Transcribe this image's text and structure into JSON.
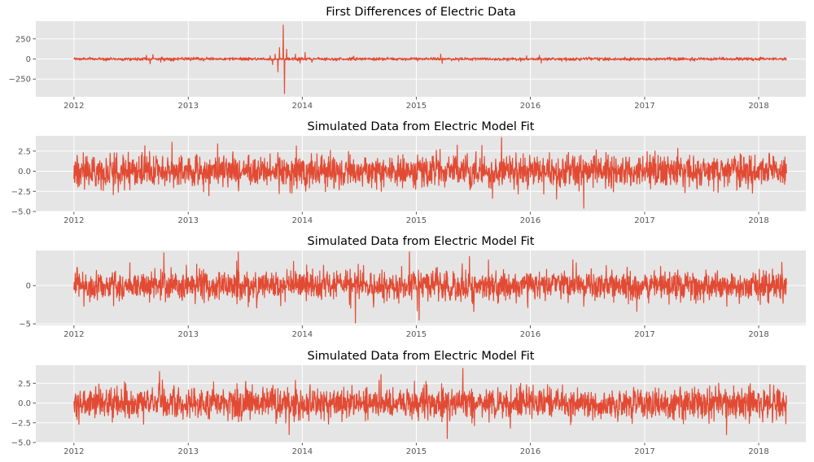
{
  "chart_data": [
    {
      "type": "line",
      "title": "First Differences of Electric Data",
      "xlabel": "",
      "ylabel": "",
      "x_range": [
        "2012-01-01",
        "2018-03-31"
      ],
      "xlim": [
        "2011-09-01",
        "2018-06-01"
      ],
      "ylim": [
        -470,
        470
      ],
      "x_ticks": [
        "2012",
        "2013",
        "2014",
        "2015",
        "2016",
        "2017",
        "2018"
      ],
      "y_ticks": [
        -250,
        0,
        250
      ],
      "noise_sd": 9,
      "spikes": [
        {
          "date": "2012-08-20",
          "value": 45
        },
        {
          "date": "2012-09-01",
          "value": -60
        },
        {
          "date": "2012-09-10",
          "value": 55
        },
        {
          "date": "2012-10-05",
          "value": -40
        },
        {
          "date": "2013-09-20",
          "value": 40
        },
        {
          "date": "2013-09-28",
          "value": -70
        },
        {
          "date": "2013-10-06",
          "value": 60
        },
        {
          "date": "2013-10-15",
          "value": -160
        },
        {
          "date": "2013-10-20",
          "value": 140
        },
        {
          "date": "2013-11-01",
          "value": 420
        },
        {
          "date": "2013-11-05",
          "value": -430
        },
        {
          "date": "2013-11-12",
          "value": 120
        },
        {
          "date": "2013-12-10",
          "value": 60
        },
        {
          "date": "2013-12-25",
          "value": -50
        },
        {
          "date": "2014-01-10",
          "value": 80
        },
        {
          "date": "2014-02-01",
          "value": -40
        },
        {
          "date": "2014-06-15",
          "value": 35
        },
        {
          "date": "2015-03-20",
          "value": 60
        },
        {
          "date": "2015-03-25",
          "value": -55
        },
        {
          "date": "2015-12-20",
          "value": 40
        },
        {
          "date": "2016-01-30",
          "value": 45
        },
        {
          "date": "2016-02-05",
          "value": -50
        }
      ],
      "grid": true,
      "color": "#E24A33"
    },
    {
      "type": "line",
      "title": "Simulated Data from Electric Model Fit",
      "xlabel": "",
      "ylabel": "",
      "x_range": [
        "2012-01-01",
        "2018-03-31"
      ],
      "xlim": [
        "2011-09-01",
        "2018-06-01"
      ],
      "ylim": [
        -5,
        4.4
      ],
      "x_ticks": [
        "2012",
        "2013",
        "2014",
        "2015",
        "2016",
        "2017",
        "2018"
      ],
      "y_ticks": [
        -5.0,
        -2.5,
        0.0,
        2.5
      ],
      "noise_sd": 1.0,
      "spikes": [
        {
          "date": "2016-06-20",
          "value": -4.6
        },
        {
          "date": "2015-10-01",
          "value": 4.2
        },
        {
          "date": "2012-11-10",
          "value": 3.6
        },
        {
          "date": "2013-04-05",
          "value": 3.4
        }
      ],
      "grid": true,
      "color": "#E24A33"
    },
    {
      "type": "line",
      "title": "Simulated Data from Electric Model Fit",
      "xlabel": "",
      "ylabel": "",
      "x_range": [
        "2012-01-01",
        "2018-03-31"
      ],
      "xlim": [
        "2011-09-01",
        "2018-06-01"
      ],
      "ylim": [
        -5.2,
        4.6
      ],
      "x_ticks": [
        "2012",
        "2013",
        "2014",
        "2015",
        "2016",
        "2017",
        "2018"
      ],
      "y_ticks": [
        -5,
        0
      ],
      "noise_sd": 1.0,
      "spikes": [
        {
          "date": "2014-06-20",
          "value": -4.9
        },
        {
          "date": "2015-01-10",
          "value": -4.5
        },
        {
          "date": "2014-12-10",
          "value": 4.4
        },
        {
          "date": "2013-06-10",
          "value": 4.4
        },
        {
          "date": "2012-10-15",
          "value": 4.3
        },
        {
          "date": "2015-06-20",
          "value": 3.8
        }
      ],
      "grid": true,
      "color": "#E24A33"
    },
    {
      "type": "line",
      "title": "Simulated Data from Electric Model Fit",
      "xlabel": "",
      "ylabel": "",
      "x_range": [
        "2012-01-01",
        "2018-03-31"
      ],
      "xlim": [
        "2011-09-01",
        "2018-06-01"
      ],
      "ylim": [
        -5,
        4.8
      ],
      "x_ticks": [
        "2012",
        "2013",
        "2014",
        "2015",
        "2016",
        "2017",
        "2018"
      ],
      "y_ticks": [
        -5.0,
        -2.5,
        0.0,
        2.5
      ],
      "noise_sd": 1.0,
      "spikes": [
        {
          "date": "2015-05-30",
          "value": 4.4
        },
        {
          "date": "2015-04-10",
          "value": -4.5
        },
        {
          "date": "2012-10-01",
          "value": 4.0
        },
        {
          "date": "2017-09-20",
          "value": -4.0
        },
        {
          "date": "2014-09-10",
          "value": 3.6
        },
        {
          "date": "2013-11-20",
          "value": -4.0
        }
      ],
      "grid": true,
      "color": "#E24A33"
    }
  ]
}
